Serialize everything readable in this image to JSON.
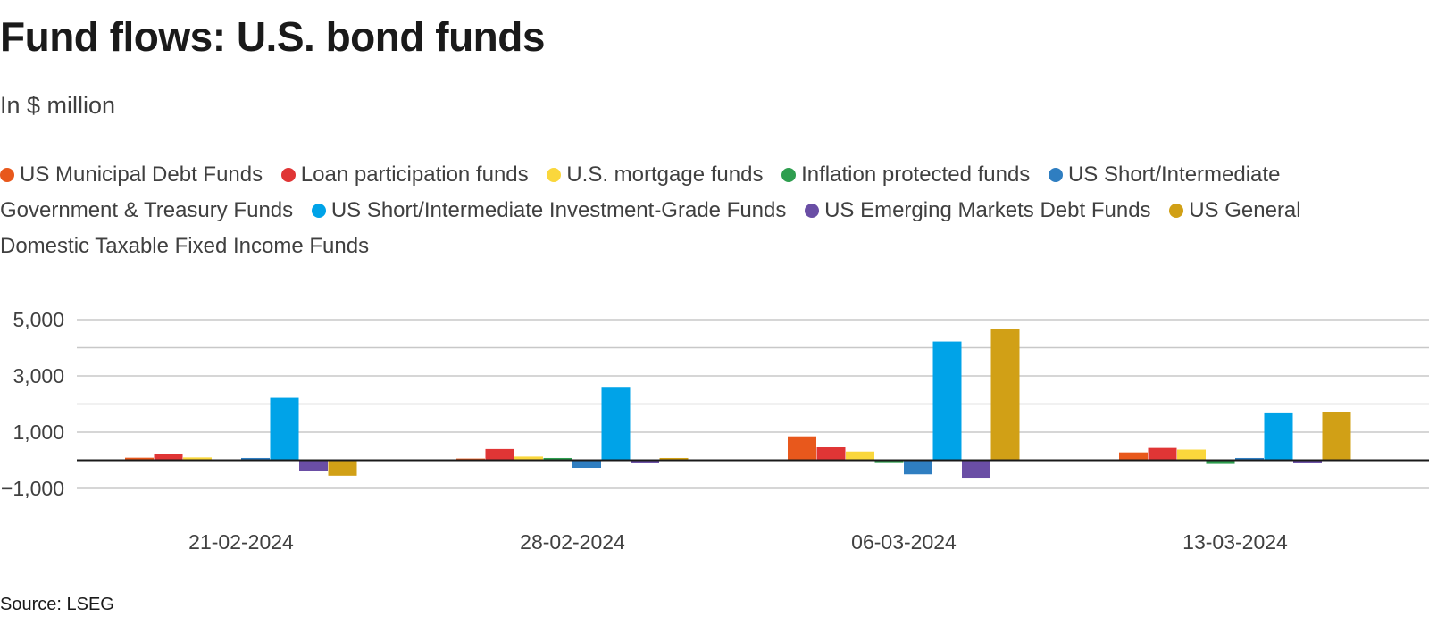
{
  "title": "Fund flows: U.S. bond funds",
  "subtitle": "In $ million",
  "source": "Source: LSEG",
  "chart_data": {
    "type": "bar",
    "title": "Fund flows: U.S. bond funds",
    "subtitle": "In $ million",
    "xlabel": "",
    "ylabel": "",
    "categories": [
      "21-02-2024",
      "28-02-2024",
      "06-03-2024",
      "13-03-2024"
    ],
    "ylim": [
      -1500,
      5000
    ],
    "y_ticks": [
      5000,
      3000,
      1000,
      -1000
    ],
    "y_tick_labels": [
      "5,000",
      "3,000",
      "1,000",
      "−1,000"
    ],
    "grid": true,
    "legend_position": "top",
    "series": [
      {
        "name": "US Municipal Debt Funds",
        "color": "#e8581c",
        "values": [
          90,
          60,
          850,
          280
        ]
      },
      {
        "name": "Loan participation funds",
        "color": "#e03535",
        "values": [
          210,
          400,
          460,
          440
        ]
      },
      {
        "name": "U.S. mortgage funds",
        "color": "#fad73c",
        "values": [
          100,
          130,
          310,
          380
        ]
      },
      {
        "name": "Inflation protected funds",
        "color": "#2e9e4f",
        "values": [
          20,
          80,
          -100,
          -130
        ]
      },
      {
        "name": "US Short/Intermediate Government & Treasury Funds",
        "color": "#2f7ec1",
        "values": [
          80,
          -270,
          -500,
          80
        ]
      },
      {
        "name": "US Short/Intermediate Investment-Grade Funds",
        "color": "#00a3e8",
        "values": [
          2220,
          2580,
          4220,
          1670
        ]
      },
      {
        "name": "US Emerging Markets Debt Funds",
        "color": "#6a4ea5",
        "values": [
          -370,
          -110,
          -620,
          -110
        ]
      },
      {
        "name": "US General Domestic Taxable Fixed Income Funds",
        "color": "#d1a016",
        "values": [
          -550,
          80,
          4660,
          1720
        ]
      }
    ]
  }
}
